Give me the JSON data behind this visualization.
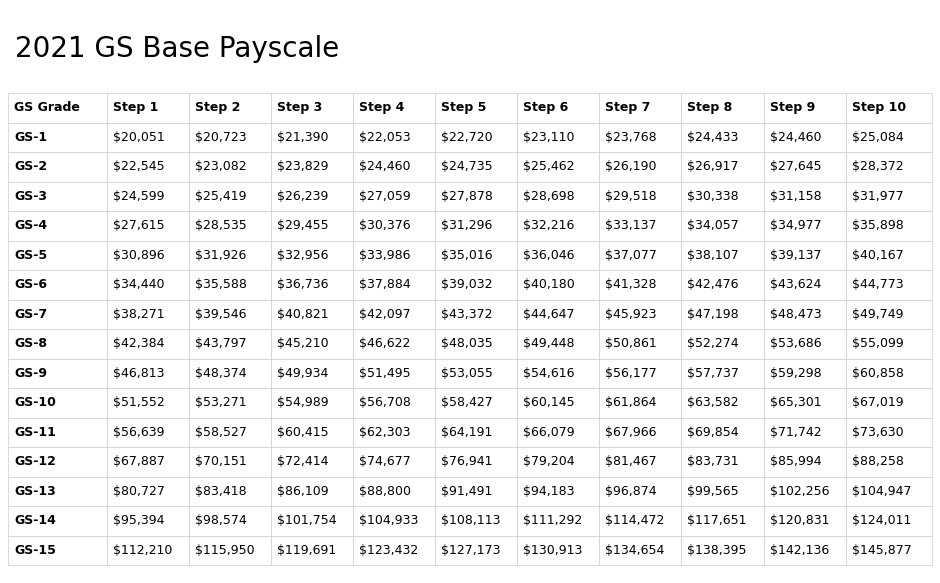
{
  "title": "2021 GS Base Payscale",
  "columns": [
    "GS Grade",
    "Step 1",
    "Step 2",
    "Step 3",
    "Step 4",
    "Step 5",
    "Step 6",
    "Step 7",
    "Step 8",
    "Step 9",
    "Step 10"
  ],
  "rows": [
    [
      "GS-1",
      "$20,051",
      "$20,723",
      "$21,390",
      "$22,053",
      "$22,720",
      "$23,110",
      "$23,768",
      "$24,433",
      "$24,460",
      "$25,084"
    ],
    [
      "GS-2",
      "$22,545",
      "$23,082",
      "$23,829",
      "$24,460",
      "$24,735",
      "$25,462",
      "$26,190",
      "$26,917",
      "$27,645",
      "$28,372"
    ],
    [
      "GS-3",
      "$24,599",
      "$25,419",
      "$26,239",
      "$27,059",
      "$27,878",
      "$28,698",
      "$29,518",
      "$30,338",
      "$31,158",
      "$31,977"
    ],
    [
      "GS-4",
      "$27,615",
      "$28,535",
      "$29,455",
      "$30,376",
      "$31,296",
      "$32,216",
      "$33,137",
      "$34,057",
      "$34,977",
      "$35,898"
    ],
    [
      "GS-5",
      "$30,896",
      "$31,926",
      "$32,956",
      "$33,986",
      "$35,016",
      "$36,046",
      "$37,077",
      "$38,107",
      "$39,137",
      "$40,167"
    ],
    [
      "GS-6",
      "$34,440",
      "$35,588",
      "$36,736",
      "$37,884",
      "$39,032",
      "$40,180",
      "$41,328",
      "$42,476",
      "$43,624",
      "$44,773"
    ],
    [
      "GS-7",
      "$38,271",
      "$39,546",
      "$40,821",
      "$42,097",
      "$43,372",
      "$44,647",
      "$45,923",
      "$47,198",
      "$48,473",
      "$49,749"
    ],
    [
      "GS-8",
      "$42,384",
      "$43,797",
      "$45,210",
      "$46,622",
      "$48,035",
      "$49,448",
      "$50,861",
      "$52,274",
      "$53,686",
      "$55,099"
    ],
    [
      "GS-9",
      "$46,813",
      "$48,374",
      "$49,934",
      "$51,495",
      "$53,055",
      "$54,616",
      "$56,177",
      "$57,737",
      "$59,298",
      "$60,858"
    ],
    [
      "GS-10",
      "$51,552",
      "$53,271",
      "$54,989",
      "$56,708",
      "$58,427",
      "$60,145",
      "$61,864",
      "$63,582",
      "$65,301",
      "$67,019"
    ],
    [
      "GS-11",
      "$56,639",
      "$58,527",
      "$60,415",
      "$62,303",
      "$64,191",
      "$66,079",
      "$67,966",
      "$69,854",
      "$71,742",
      "$73,630"
    ],
    [
      "GS-12",
      "$67,887",
      "$70,151",
      "$72,414",
      "$74,677",
      "$76,941",
      "$79,204",
      "$81,467",
      "$83,731",
      "$85,994",
      "$88,258"
    ],
    [
      "GS-13",
      "$80,727",
      "$83,418",
      "$86,109",
      "$88,800",
      "$91,491",
      "$94,183",
      "$96,874",
      "$99,565",
      "$102,256",
      "$104,947"
    ],
    [
      "GS-14",
      "$95,394",
      "$98,574",
      "$101,754",
      "$104,933",
      "$108,113",
      "$111,292",
      "$114,472",
      "$117,651",
      "$120,831",
      "$124,011"
    ],
    [
      "GS-15",
      "$112,210",
      "$115,950",
      "$119,691",
      "$123,432",
      "$127,173",
      "$130,913",
      "$134,654",
      "$138,395",
      "$142,136",
      "$145,877"
    ]
  ],
  "title_fontsize": 20,
  "header_fontsize": 9,
  "cell_fontsize": 9,
  "background_color": "#ffffff",
  "border_color": "#cccccc",
  "text_color": "#000000",
  "col_widths_raw": [
    1.2,
    1.0,
    1.0,
    1.0,
    1.0,
    1.0,
    1.0,
    1.0,
    1.0,
    1.0,
    1.05
  ]
}
